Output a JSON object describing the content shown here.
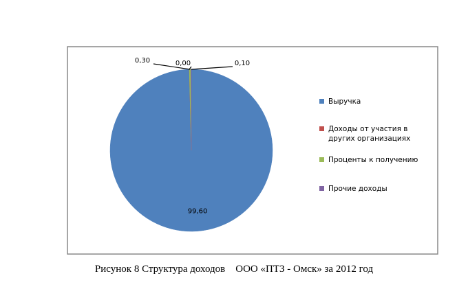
{
  "chart_data": {
    "type": "pie",
    "categories": [
      "Выручка",
      "Доходы от участия в других организациях",
      "Проценты к получению",
      "Прочие доходы"
    ],
    "values": [
      99.6,
      0,
      0.3,
      0.1
    ],
    "value_labels": [
      "99,60",
      "0,00",
      "0,30",
      "0,10"
    ],
    "colors": [
      "#4f81bd",
      "#c0504d",
      "#9bbb59",
      "#8064a2"
    ],
    "legend": "right"
  },
  "caption": "Рисунок 8 Структура доходов    ООО «ПТЗ - Омск» за 2012 год"
}
